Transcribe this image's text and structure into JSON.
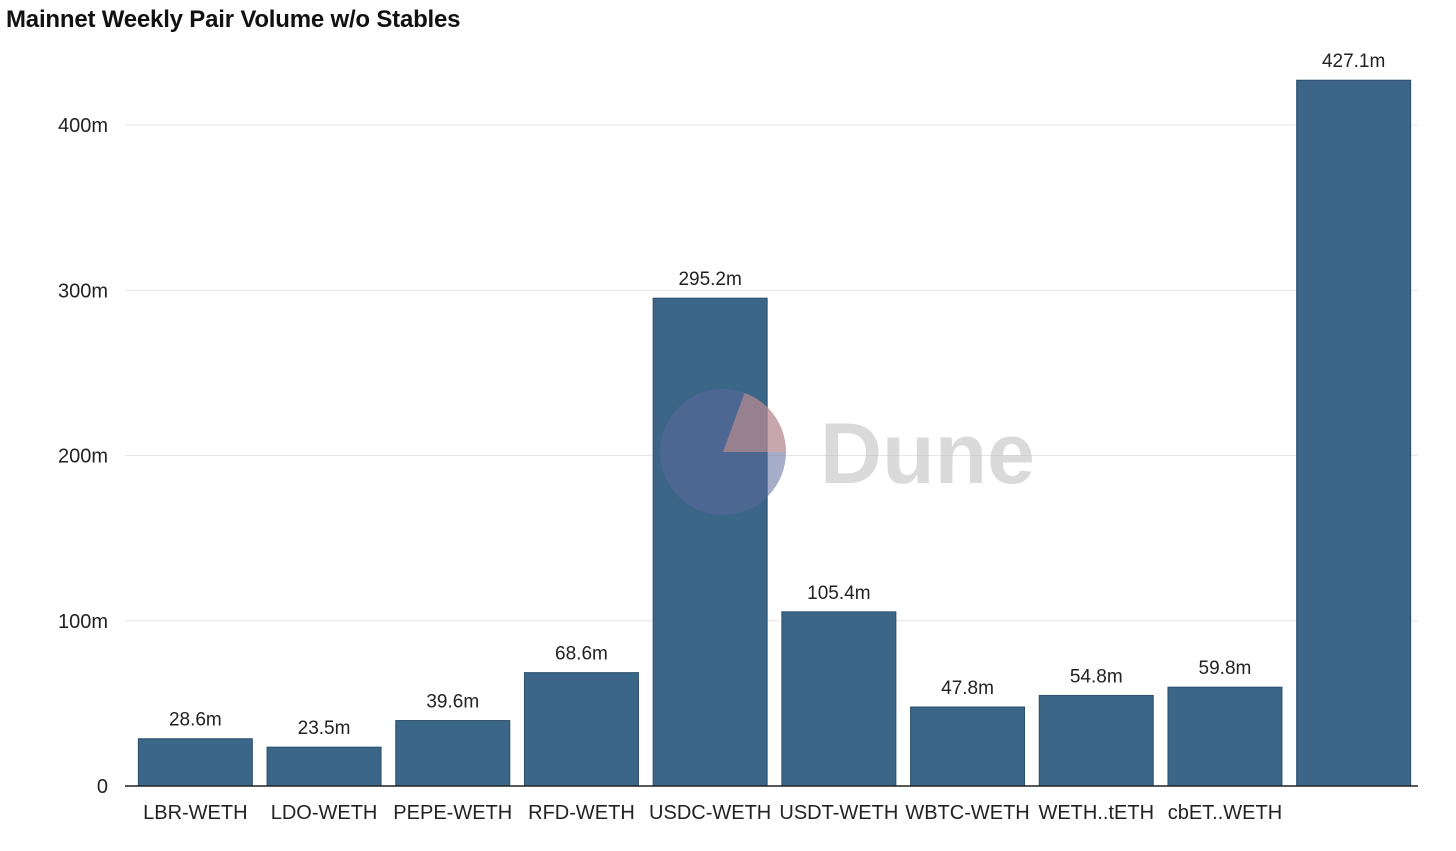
{
  "chart_data": {
    "type": "bar",
    "title": "Mainnet Weekly Pair Volume w/o Stables",
    "xlabel": "",
    "ylabel": "",
    "categories": [
      "LBR-WETH",
      "LDO-WETH",
      "PEPE-WETH",
      "RFD-WETH",
      "USDC-WETH",
      "USDT-WETH",
      "WBTC-WETH",
      "WETH..tETH",
      "cbET..WETH",
      ""
    ],
    "values": [
      28.6,
      23.5,
      39.6,
      68.6,
      295.2,
      105.4,
      47.8,
      54.8,
      59.8,
      427.1
    ],
    "data_labels": [
      "28.6m",
      "23.5m",
      "39.6m",
      "68.6m",
      "295.2m",
      "105.4m",
      "47.8m",
      "54.8m",
      "59.8m",
      "427.1m"
    ],
    "unit": "m",
    "ylim": [
      0,
      440
    ],
    "yticks": [
      0,
      100,
      200,
      300,
      400
    ],
    "ytick_labels": [
      "0",
      "100m",
      "200m",
      "300m",
      "400m"
    ],
    "grid": true,
    "legend": "none",
    "bar_color": "#3b6688"
  },
  "watermark": {
    "text": "Dune",
    "colors": {
      "pie_main": "#5b6a9a",
      "pie_slice": "#f4a08a",
      "text": "#bdbdbd"
    }
  }
}
